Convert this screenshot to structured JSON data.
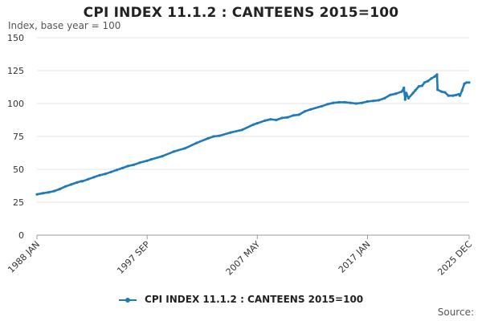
{
  "chart_data": {
    "type": "line",
    "title": "CPI INDEX 11.1.2 : CANTEENS 2015=100",
    "ylabel": "Index, base year = 100",
    "xlabel": "",
    "ylim": [
      0,
      150
    ],
    "yticks": [
      0,
      25,
      50,
      75,
      100,
      125,
      150
    ],
    "grid": true,
    "legend_position": "bottom",
    "source": "Source:",
    "x_range": [
      1988.0,
      2025.92
    ],
    "xticks": [
      {
        "label": "1988 JAN",
        "x": 1988.0
      },
      {
        "label": "1997 SEP",
        "x": 1997.67
      },
      {
        "label": "2007 MAY",
        "x": 2007.33
      },
      {
        "label": "2017 JAN",
        "x": 2017.0
      },
      {
        "label": "2025 DEC",
        "x": 2025.92
      }
    ],
    "series": [
      {
        "name": "CPI INDEX 11.1.2 : CANTEENS 2015=100",
        "color": "#1f7ab8",
        "x": [
          1988.0,
          1988.5,
          1989.0,
          1989.5,
          1990.0,
          1990.5,
          1991.0,
          1991.5,
          1991.9,
          1992.0,
          1992.5,
          1993.0,
          1993.5,
          1994.0,
          1994.5,
          1995.0,
          1995.5,
          1996.0,
          1996.5,
          1997.0,
          1997.67,
          1998.0,
          1999.0,
          2000.0,
          2001.0,
          2002.0,
          2003.0,
          2003.5,
          2004.0,
          2005.0,
          2006.0,
          2007.0,
          2007.33,
          2008.0,
          2008.5,
          2009.0,
          2009.5,
          2010.0,
          2010.5,
          2011.0,
          2011.5,
          2012.0,
          2013.0,
          2013.5,
          2014.0,
          2014.5,
          2015.0,
          2015.5,
          2016.0,
          2016.5,
          2017.0,
          2017.5,
          2018.0,
          2018.5,
          2019.0,
          2019.5,
          2020.0,
          2020.1,
          2020.2,
          2020.3,
          2020.4,
          2020.6,
          2021.0,
          2021.2,
          2021.5,
          2021.8,
          2022.0,
          2022.3,
          2022.6,
          2022.9,
          2023.1,
          2023.15,
          2023.5,
          2023.8,
          2024.1,
          2024.5,
          2024.8,
          2025.0,
          2025.1,
          2025.3,
          2025.5,
          2025.7,
          2025.92
        ],
        "values": [
          31,
          31.8,
          32.5,
          33.5,
          35,
          37,
          38.5,
          40,
          41,
          41,
          42.5,
          44,
          45.5,
          46.5,
          48,
          49.5,
          51,
          52.5,
          53.5,
          55,
          56.5,
          57.5,
          60,
          63.5,
          66,
          70,
          73.5,
          75,
          75.5,
          78,
          80,
          84,
          85,
          87,
          88,
          87.5,
          89,
          89.5,
          91,
          91.5,
          94,
          95.5,
          98,
          99.5,
          100.5,
          101,
          101,
          100.5,
          100,
          100.5,
          101.5,
          102,
          102.5,
          104,
          106.5,
          107.5,
          109,
          110,
          112,
          103,
          108,
          104,
          108,
          110,
          113,
          113.5,
          116,
          117,
          119,
          120.5,
          122,
          110.5,
          109,
          108.5,
          106,
          106,
          106.5,
          107,
          106,
          110,
          115,
          116,
          116
        ]
      }
    ]
  }
}
